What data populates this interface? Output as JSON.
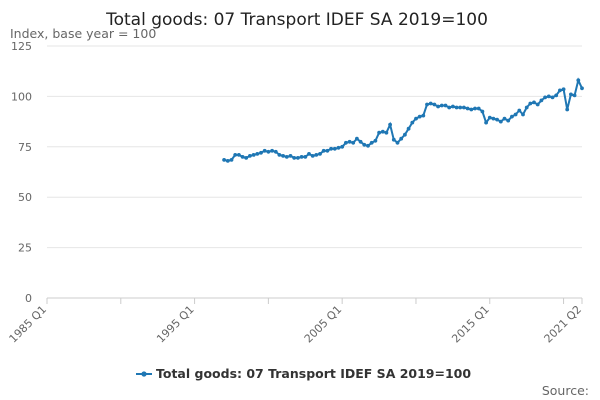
{
  "chart_data": {
    "type": "line",
    "title": "Total goods: 07 Transport IDEF SA 2019=100",
    "ylabel": "Index, base year = 100",
    "xlabel": "",
    "x_range": [
      "1985 Q1",
      "2021 Q2"
    ],
    "x_ticks": [
      "1985 Q1",
      "1995 Q1",
      "2005 Q1",
      "2015 Q1",
      "2021 Q2"
    ],
    "ylim": [
      0,
      125
    ],
    "y_ticks": [
      0,
      25,
      50,
      75,
      100,
      125
    ],
    "grid": true,
    "legend_position": "bottom",
    "series": [
      {
        "name": "Total goods: 07 Transport IDEF SA 2019=100",
        "color": "#1f77b4",
        "points": [
          [
            "1997 Q1",
            68.5
          ],
          [
            "1997 Q2",
            68.0
          ],
          [
            "1997 Q3",
            68.5
          ],
          [
            "1997 Q4",
            71.0
          ],
          [
            "1998 Q1",
            71.0
          ],
          [
            "1998 Q2",
            70.0
          ],
          [
            "1998 Q3",
            69.5
          ],
          [
            "1998 Q4",
            70.5
          ],
          [
            "1999 Q1",
            71.0
          ],
          [
            "1999 Q2",
            71.5
          ],
          [
            "1999 Q3",
            72.0
          ],
          [
            "1999 Q4",
            73.0
          ],
          [
            "2000 Q1",
            72.5
          ],
          [
            "2000 Q2",
            73.0
          ],
          [
            "2000 Q3",
            72.5
          ],
          [
            "2000 Q4",
            71.0
          ],
          [
            "2001 Q1",
            70.5
          ],
          [
            "2001 Q2",
            70.0
          ],
          [
            "2001 Q3",
            70.5
          ],
          [
            "2001 Q4",
            69.5
          ],
          [
            "2002 Q1",
            69.5
          ],
          [
            "2002 Q2",
            70.0
          ],
          [
            "2002 Q3",
            70.0
          ],
          [
            "2002 Q4",
            71.5
          ],
          [
            "2003 Q1",
            70.5
          ],
          [
            "2003 Q2",
            71.0
          ],
          [
            "2003 Q3",
            71.5
          ],
          [
            "2003 Q4",
            73.0
          ],
          [
            "2004 Q1",
            73.0
          ],
          [
            "2004 Q2",
            74.0
          ],
          [
            "2004 Q3",
            74.0
          ],
          [
            "2004 Q4",
            74.5
          ],
          [
            "2005 Q1",
            75.0
          ],
          [
            "2005 Q2",
            77.0
          ],
          [
            "2005 Q3",
            77.5
          ],
          [
            "2005 Q4",
            77.0
          ],
          [
            "2006 Q1",
            79.0
          ],
          [
            "2006 Q2",
            77.5
          ],
          [
            "2006 Q3",
            76.0
          ],
          [
            "2006 Q4",
            75.5
          ],
          [
            "2007 Q1",
            77.0
          ],
          [
            "2007 Q2",
            78.0
          ],
          [
            "2007 Q3",
            82.0
          ],
          [
            "2007 Q4",
            82.5
          ],
          [
            "2008 Q1",
            82.0
          ],
          [
            "2008 Q2",
            86.0
          ],
          [
            "2008 Q3",
            78.5
          ],
          [
            "2008 Q4",
            77.0
          ],
          [
            "2009 Q1",
            79.0
          ],
          [
            "2009 Q2",
            81.0
          ],
          [
            "2009 Q3",
            84.0
          ],
          [
            "2009 Q4",
            87.0
          ],
          [
            "2010 Q1",
            89.0
          ],
          [
            "2010 Q2",
            90.0
          ],
          [
            "2010 Q3",
            90.5
          ],
          [
            "2010 Q4",
            96.0
          ],
          [
            "2011 Q1",
            96.5
          ],
          [
            "2011 Q2",
            96.0
          ],
          [
            "2011 Q3",
            95.0
          ],
          [
            "2011 Q4",
            95.5
          ],
          [
            "2012 Q1",
            95.5
          ],
          [
            "2012 Q2",
            94.5
          ],
          [
            "2012 Q3",
            95.0
          ],
          [
            "2012 Q4",
            94.5
          ],
          [
            "2013 Q1",
            94.5
          ],
          [
            "2013 Q2",
            94.5
          ],
          [
            "2013 Q3",
            94.0
          ],
          [
            "2013 Q4",
            93.5
          ],
          [
            "2014 Q1",
            94.0
          ],
          [
            "2014 Q2",
            94.0
          ],
          [
            "2014 Q3",
            92.5
          ],
          [
            "2014 Q4",
            87.0
          ],
          [
            "2015 Q1",
            89.5
          ],
          [
            "2015 Q2",
            89.0
          ],
          [
            "2015 Q3",
            88.5
          ],
          [
            "2015 Q4",
            87.5
          ],
          [
            "2016 Q1",
            89.0
          ],
          [
            "2016 Q2",
            88.0
          ],
          [
            "2016 Q3",
            90.0
          ],
          [
            "2016 Q4",
            91.0
          ],
          [
            "2017 Q1",
            93.0
          ],
          [
            "2017 Q2",
            91.0
          ],
          [
            "2017 Q3",
            94.5
          ],
          [
            "2017 Q4",
            96.5
          ],
          [
            "2018 Q1",
            97.0
          ],
          [
            "2018 Q2",
            96.0
          ],
          [
            "2018 Q3",
            98.0
          ],
          [
            "2018 Q4",
            99.5
          ],
          [
            "2019 Q1",
            100.0
          ],
          [
            "2019 Q2",
            99.5
          ],
          [
            "2019 Q3",
            100.5
          ],
          [
            "2019 Q4",
            103.0
          ],
          [
            "2020 Q1",
            103.5
          ],
          [
            "2020 Q2",
            93.5
          ],
          [
            "2020 Q3",
            101.0
          ],
          [
            "2020 Q4",
            100.5
          ],
          [
            "2021 Q1",
            108.0
          ],
          [
            "2021 Q2",
            104.0
          ]
        ]
      }
    ],
    "source": "Source:"
  }
}
